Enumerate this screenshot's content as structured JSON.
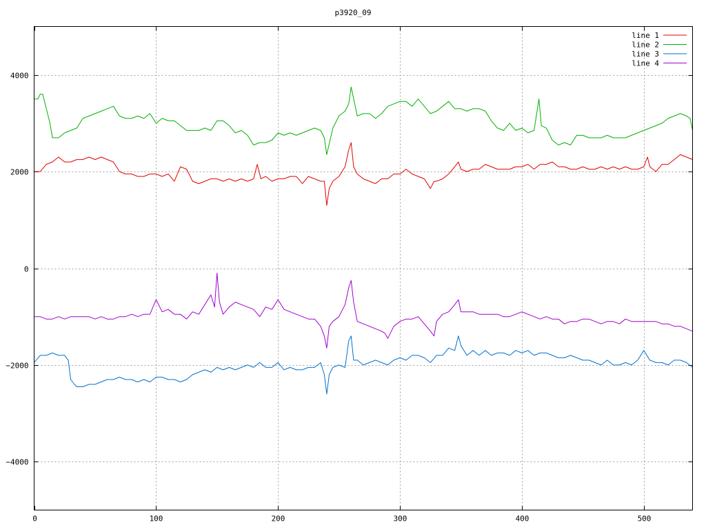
{
  "chart_data": {
    "type": "line",
    "title": "p3920_09",
    "xlim": [
      0,
      540
    ],
    "ylim": [
      -5000,
      5000
    ],
    "xticks": [
      0,
      100,
      200,
      300,
      400,
      500
    ],
    "yticks": [
      -4000,
      -2000,
      0,
      2000,
      4000
    ],
    "ytick_labels": [
      "−4000",
      "−2000",
      "0",
      "2000",
      "4000"
    ],
    "grid": true,
    "legend_position": "top-right",
    "series": [
      {
        "name": "line 1",
        "color": "#e00000",
        "x": [
          0,
          5,
          10,
          15,
          20,
          25,
          30,
          35,
          40,
          45,
          50,
          55,
          60,
          65,
          70,
          75,
          80,
          85,
          90,
          95,
          100,
          105,
          110,
          115,
          120,
          125,
          130,
          135,
          140,
          145,
          150,
          155,
          160,
          165,
          170,
          175,
          180,
          183,
          186,
          190,
          195,
          200,
          205,
          210,
          215,
          220,
          225,
          230,
          235,
          238,
          240,
          242,
          245,
          250,
          255,
          258,
          260,
          262,
          265,
          270,
          275,
          280,
          285,
          290,
          295,
          300,
          305,
          310,
          315,
          320,
          325,
          328,
          330,
          335,
          340,
          345,
          348,
          350,
          355,
          360,
          365,
          370,
          375,
          380,
          385,
          390,
          395,
          400,
          405,
          410,
          415,
          420,
          425,
          430,
          435,
          440,
          445,
          450,
          455,
          460,
          465,
          470,
          475,
          480,
          485,
          490,
          495,
          500,
          503,
          505,
          510,
          515,
          520,
          525,
          530,
          535,
          540
        ],
        "y": [
          2000,
          2000,
          2150,
          2200,
          2300,
          2200,
          2200,
          2250,
          2250,
          2300,
          2250,
          2300,
          2250,
          2200,
          2000,
          1950,
          1950,
          1900,
          1900,
          1950,
          1950,
          1900,
          1950,
          1800,
          2100,
          2050,
          1800,
          1750,
          1800,
          1850,
          1850,
          1800,
          1850,
          1800,
          1850,
          1800,
          1850,
          2150,
          1850,
          1900,
          1800,
          1850,
          1850,
          1900,
          1900,
          1750,
          1900,
          1850,
          1800,
          1800,
          1300,
          1650,
          1800,
          1900,
          2100,
          2450,
          2600,
          2100,
          1950,
          1850,
          1800,
          1750,
          1850,
          1850,
          1950,
          1950,
          2050,
          1950,
          1900,
          1850,
          1650,
          1800,
          1800,
          1850,
          1950,
          2100,
          2200,
          2050,
          2000,
          2050,
          2050,
          2150,
          2100,
          2050,
          2050,
          2050,
          2100,
          2100,
          2150,
          2050,
          2150,
          2150,
          2200,
          2100,
          2100,
          2050,
          2050,
          2100,
          2050,
          2050,
          2100,
          2050,
          2100,
          2050,
          2100,
          2050,
          2050,
          2100,
          2300,
          2100,
          2000,
          2150,
          2150,
          2250,
          2350,
          2300,
          2250
        ]
      },
      {
        "name": "line 2",
        "color": "#00b000",
        "x": [
          0,
          3,
          5,
          7,
          10,
          13,
          15,
          20,
          25,
          30,
          35,
          40,
          45,
          50,
          55,
          60,
          65,
          70,
          75,
          80,
          85,
          90,
          95,
          100,
          105,
          110,
          115,
          120,
          125,
          130,
          135,
          140,
          145,
          150,
          155,
          160,
          165,
          170,
          175,
          180,
          185,
          190,
          195,
          200,
          205,
          210,
          215,
          220,
          225,
          230,
          235,
          238,
          240,
          245,
          250,
          255,
          258,
          260,
          265,
          270,
          275,
          280,
          285,
          290,
          295,
          300,
          305,
          310,
          315,
          320,
          325,
          330,
          335,
          340,
          345,
          350,
          355,
          360,
          365,
          370,
          375,
          380,
          385,
          390,
          395,
          400,
          405,
          410,
          414,
          416,
          420,
          425,
          430,
          435,
          440,
          445,
          450,
          455,
          460,
          465,
          470,
          475,
          480,
          485,
          490,
          495,
          500,
          505,
          510,
          515,
          520,
          525,
          530,
          535,
          538,
          540
        ],
        "y": [
          3500,
          3500,
          3600,
          3600,
          3300,
          3000,
          2700,
          2700,
          2800,
          2850,
          2900,
          3100,
          3150,
          3200,
          3250,
          3300,
          3350,
          3150,
          3100,
          3100,
          3150,
          3100,
          3200,
          3000,
          3100,
          3050,
          3050,
          2950,
          2850,
          2850,
          2850,
          2900,
          2850,
          3050,
          3050,
          2950,
          2800,
          2850,
          2750,
          2550,
          2600,
          2600,
          2650,
          2800,
          2750,
          2800,
          2750,
          2800,
          2850,
          2900,
          2850,
          2700,
          2350,
          2900,
          3150,
          3250,
          3400,
          3750,
          3150,
          3200,
          3200,
          3100,
          3200,
          3350,
          3400,
          3450,
          3450,
          3350,
          3500,
          3350,
          3200,
          3250,
          3350,
          3450,
          3300,
          3300,
          3250,
          3300,
          3300,
          3250,
          3050,
          2900,
          2850,
          3000,
          2850,
          2900,
          2800,
          2850,
          3500,
          2950,
          2900,
          2650,
          2550,
          2600,
          2550,
          2750,
          2750,
          2700,
          2700,
          2700,
          2750,
          2700,
          2700,
          2700,
          2750,
          2800,
          2850,
          2900,
          2950,
          3000,
          3100,
          3150,
          3200,
          3150,
          3100,
          2850
        ]
      },
      {
        "name": "line 3",
        "color": "#0070d0",
        "x": [
          0,
          5,
          10,
          15,
          20,
          25,
          28,
          30,
          33,
          35,
          40,
          45,
          50,
          55,
          60,
          65,
          70,
          75,
          80,
          85,
          90,
          95,
          100,
          105,
          110,
          115,
          120,
          125,
          130,
          135,
          140,
          145,
          150,
          155,
          160,
          165,
          170,
          175,
          180,
          185,
          190,
          195,
          200,
          205,
          210,
          215,
          220,
          225,
          230,
          235,
          238,
          240,
          242,
          245,
          250,
          255,
          258,
          260,
          262,
          265,
          270,
          275,
          280,
          285,
          290,
          295,
          300,
          305,
          310,
          315,
          320,
          325,
          330,
          335,
          340,
          345,
          348,
          350,
          355,
          360,
          365,
          370,
          375,
          380,
          385,
          390,
          395,
          400,
          405,
          410,
          415,
          420,
          425,
          430,
          435,
          440,
          445,
          450,
          455,
          460,
          465,
          470,
          475,
          480,
          485,
          490,
          495,
          500,
          505,
          510,
          515,
          520,
          525,
          530,
          535,
          540
        ],
        "y": [
          -1950,
          -1800,
          -1800,
          -1750,
          -1800,
          -1800,
          -1900,
          -2300,
          -2400,
          -2450,
          -2450,
          -2400,
          -2400,
          -2350,
          -2300,
          -2300,
          -2250,
          -2300,
          -2300,
          -2350,
          -2300,
          -2350,
          -2250,
          -2250,
          -2300,
          -2300,
          -2350,
          -2300,
          -2200,
          -2150,
          -2100,
          -2150,
          -2050,
          -2100,
          -2050,
          -2100,
          -2050,
          -2000,
          -2050,
          -1950,
          -2050,
          -2050,
          -1950,
          -2100,
          -2050,
          -2100,
          -2100,
          -2050,
          -2050,
          -1950,
          -2200,
          -2600,
          -2200,
          -2050,
          -2000,
          -2050,
          -1500,
          -1400,
          -1900,
          -1900,
          -2000,
          -1950,
          -1900,
          -1950,
          -2000,
          -1900,
          -1850,
          -1900,
          -1800,
          -1800,
          -1850,
          -1950,
          -1800,
          -1800,
          -1650,
          -1700,
          -1400,
          -1600,
          -1800,
          -1700,
          -1800,
          -1700,
          -1800,
          -1750,
          -1750,
          -1800,
          -1700,
          -1750,
          -1700,
          -1800,
          -1750,
          -1750,
          -1800,
          -1850,
          -1850,
          -1800,
          -1850,
          -1900,
          -1900,
          -1950,
          -2000,
          -1900,
          -2000,
          -2000,
          -1950,
          -2000,
          -1900,
          -1700,
          -1900,
          -1950,
          -1950,
          -2000,
          -1900,
          -1900,
          -1950,
          -2050
        ]
      },
      {
        "name": "line 4",
        "color": "#a000d0",
        "x": [
          0,
          5,
          10,
          15,
          20,
          25,
          30,
          35,
          40,
          45,
          50,
          55,
          60,
          65,
          70,
          75,
          80,
          85,
          90,
          95,
          100,
          105,
          110,
          115,
          120,
          125,
          130,
          135,
          140,
          145,
          148,
          150,
          152,
          155,
          160,
          165,
          170,
          175,
          180,
          185,
          190,
          195,
          200,
          205,
          210,
          215,
          220,
          225,
          230,
          235,
          238,
          240,
          242,
          245,
          250,
          255,
          258,
          260,
          262,
          265,
          270,
          275,
          280,
          285,
          288,
          290,
          295,
          300,
          305,
          310,
          315,
          320,
          325,
          328,
          330,
          335,
          340,
          345,
          348,
          350,
          355,
          360,
          365,
          370,
          375,
          380,
          385,
          390,
          395,
          400,
          405,
          410,
          415,
          420,
          425,
          430,
          435,
          440,
          445,
          450,
          455,
          460,
          465,
          470,
          475,
          480,
          485,
          490,
          495,
          500,
          505,
          510,
          515,
          520,
          525,
          530,
          535,
          540
        ],
        "y": [
          -1000,
          -1000,
          -1050,
          -1050,
          -1000,
          -1050,
          -1000,
          -1000,
          -1000,
          -1000,
          -1050,
          -1000,
          -1050,
          -1050,
          -1000,
          -1000,
          -950,
          -1000,
          -950,
          -950,
          -650,
          -900,
          -850,
          -950,
          -950,
          -1050,
          -900,
          -950,
          -750,
          -550,
          -800,
          -100,
          -700,
          -950,
          -800,
          -700,
          -750,
          -800,
          -850,
          -1000,
          -800,
          -850,
          -650,
          -850,
          -900,
          -950,
          -1000,
          -1050,
          -1050,
          -1200,
          -1400,
          -1650,
          -1200,
          -1100,
          -1000,
          -750,
          -400,
          -250,
          -700,
          -1100,
          -1150,
          -1200,
          -1250,
          -1300,
          -1350,
          -1450,
          -1200,
          -1100,
          -1050,
          -1050,
          -1000,
          -1150,
          -1300,
          -1400,
          -1100,
          -950,
          -900,
          -750,
          -650,
          -900,
          -900,
          -900,
          -950,
          -950,
          -950,
          -950,
          -1000,
          -1000,
          -950,
          -900,
          -950,
          -1000,
          -1050,
          -1000,
          -1050,
          -1050,
          -1150,
          -1100,
          -1100,
          -1050,
          -1050,
          -1100,
          -1150,
          -1100,
          -1100,
          -1150,
          -1050,
          -1100,
          -1100,
          -1100,
          -1100,
          -1100,
          -1150,
          -1150,
          -1200,
          -1200,
          -1250,
          -1300
        ]
      }
    ]
  }
}
